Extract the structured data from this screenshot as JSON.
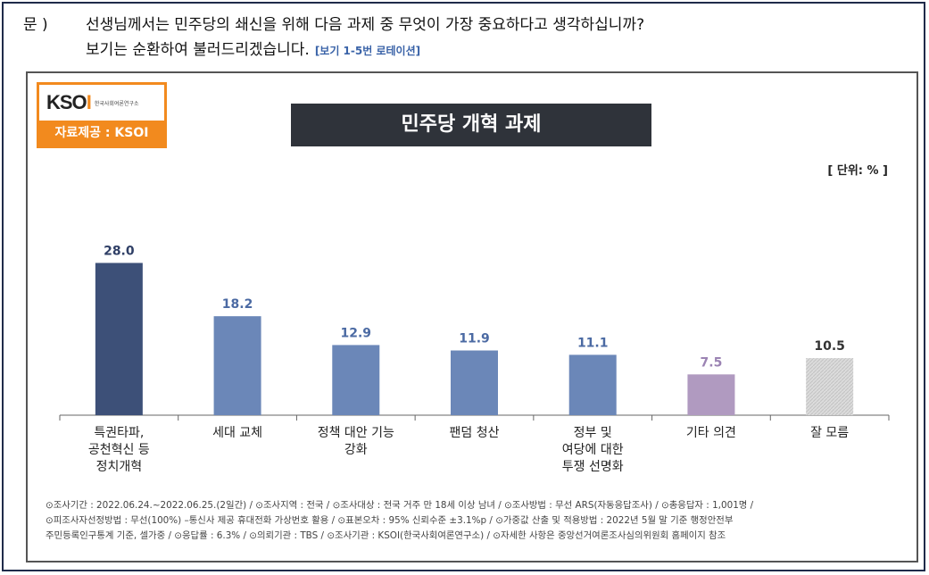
{
  "question": {
    "label": "문 )",
    "line1": "선생님께서는 민주당의 쇄신을 위해 다음 과제 중 무엇이 가장 중요하다고 생각하십니까?",
    "line2": "보기는 순환하여 불러드리겠습니다.",
    "note": "[보기 1-5번 로테이션]"
  },
  "logo": {
    "word_main": "KSO",
    "word_accent": "I",
    "subtitle": "한국사회여론연구소",
    "source": "자료제공 : KSOI"
  },
  "unit": "[ 단위: % ]",
  "chart_data": {
    "type": "bar",
    "title": "민주당 개혁 과제",
    "categories": [
      [
        "특권타파,",
        "공천혁신 등",
        "정치개혁"
      ],
      [
        "세대 교체"
      ],
      [
        "정책 대안 기능",
        "강화"
      ],
      [
        "팬덤 청산"
      ],
      [
        "정부 및",
        "여당에 대한",
        "투쟁 선명화"
      ],
      [
        "기타 의견"
      ],
      [
        "잘 모름"
      ]
    ],
    "values": [
      28.0,
      18.2,
      12.9,
      11.9,
      11.1,
      7.5,
      10.5
    ],
    "value_labels": [
      "28.0",
      "18.2",
      "12.9",
      "11.9",
      "11.1",
      "7.5",
      "10.5"
    ],
    "colors": [
      "#3d5078",
      "#6b87b8",
      "#6b87b8",
      "#6b87b8",
      "#6b87b8",
      "#b09ac0",
      "#d4d4d4"
    ],
    "label_colors": [
      "#2f3f66",
      "#4b6aa3",
      "#4b6aa3",
      "#4b6aa3",
      "#4b6aa3",
      "#9b83b3",
      "#333333"
    ],
    "ylim": [
      0,
      30
    ],
    "xlabel": "",
    "ylabel": "",
    "grid": false
  },
  "footer": {
    "line1": "⊙조사기간 : 2022.06.24.~2022.06.25.(2일간) / ⊙조사지역 : 전국 / ⊙조사대상 : 전국 거주 만 18세 이상 남녀 / ⊙조사방법 : 무선 ARS(자동응답조사) / ⊙총응답자 : 1,001명 /",
    "line2": "⊙피조사자선정방법 : 무선(100%) –통신사 제공 휴대전화 가상번호 활용 / ⊙표본오차 : 95% 신뢰수준 ±3.1%p / ⊙가중값 산출 및 적용방법 : 2022년 5월 말 기준 행정안전부",
    "line3": "주민등록인구통계 기준, 셀가중 / ⊙응답률 : 6.3% / ⊙의뢰기관 : TBS / ⊙조사기관 : KSOI(한국사회여론연구소) / ⊙자세한 사항은 중앙선거여론조사심의위원회 홈페이지 참조"
  }
}
